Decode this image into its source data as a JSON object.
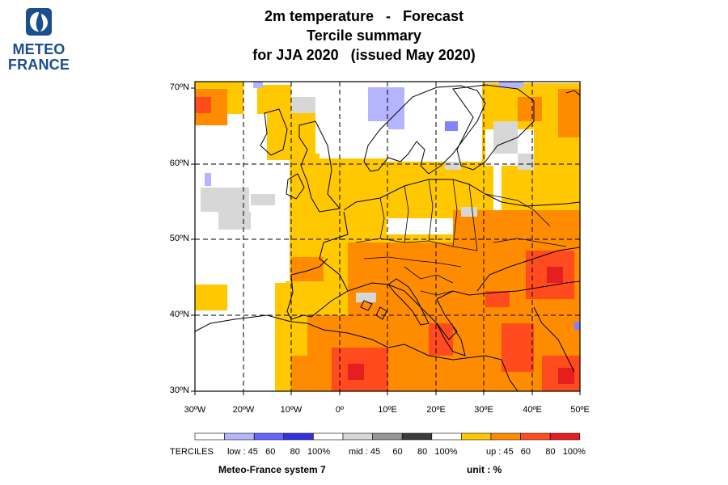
{
  "logo": {
    "line1": "METEO",
    "line2": "FRANCE",
    "color": "#1a4e8c"
  },
  "title": {
    "line1": "2m temperature   -   Forecast",
    "line2": "Tercile summary",
    "line3": "for JJA 2020   (issued May 2020)"
  },
  "map": {
    "lat_ticks": [
      "70ºN",
      "60ºN",
      "50ºN",
      "40ºN",
      "30ºN"
    ],
    "lon_ticks": [
      "30ºW",
      "20ºW",
      "10ºW",
      "0º",
      "10ºE",
      "20ºE",
      "30ºE",
      "40ºE",
      "50ºE"
    ],
    "colors": {
      "up45": "#ffc800",
      "up60": "#ff8c00",
      "up80": "#ff4b1e",
      "up100": "#e61e1e",
      "mid": "#d7d7d7",
      "low45": "#b4b4ff",
      "low60": "#8282ff",
      "coast": "#000000"
    }
  },
  "legend": {
    "colors": [
      "#ffffff",
      "#b4b4ff",
      "#6464ff",
      "#3232dc",
      "#ffffff",
      "#d7d7d7",
      "#969696",
      "#3c3c3c",
      "#ffffff",
      "#ffc800",
      "#ff8c00",
      "#ff4b1e",
      "#e61e1e"
    ],
    "terciles_label": "TERCILES",
    "low_label": "low : 45   60      80   100%",
    "mid_label": "mid : 45     60      80   100%",
    "up_label": "up : 45   60      80   100%"
  },
  "footer": {
    "system": "Meteo-France system 7",
    "unit": "unit : %"
  }
}
